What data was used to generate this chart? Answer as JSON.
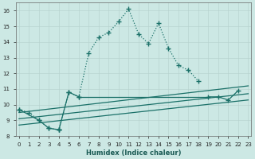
{
  "xlabel": "Humidex (Indice chaleur)",
  "bg_color": "#cce8e4",
  "grid_color": "#b8d4d0",
  "line_color": "#1a7068",
  "ylim": [
    8,
    16.5
  ],
  "xlim": [
    0,
    23
  ],
  "jagged_x": [
    0,
    1,
    2,
    3,
    4,
    5,
    6,
    7,
    8,
    9,
    10,
    11,
    12,
    13,
    14,
    15,
    16,
    17,
    18
  ],
  "jagged_y": [
    9.7,
    9.5,
    9.0,
    8.5,
    8.4,
    10.8,
    10.5,
    13.3,
    14.3,
    14.6,
    15.3,
    16.1,
    14.5,
    13.9,
    15.2,
    13.6,
    12.5,
    12.2,
    11.5
  ],
  "flat1_x": [
    0,
    2,
    3,
    4,
    5,
    6,
    19,
    20,
    21,
    22
  ],
  "flat1_y": [
    9.7,
    9.0,
    8.5,
    8.4,
    10.8,
    10.5,
    10.5,
    10.5,
    10.3,
    10.9
  ],
  "line2_x": [
    0,
    23
  ],
  "line2_y": [
    9.5,
    11.2
  ],
  "line3_x": [
    0,
    23
  ],
  "line3_y": [
    9.1,
    10.7
  ],
  "line4_x": [
    0,
    23
  ],
  "line4_y": [
    8.7,
    10.3
  ]
}
